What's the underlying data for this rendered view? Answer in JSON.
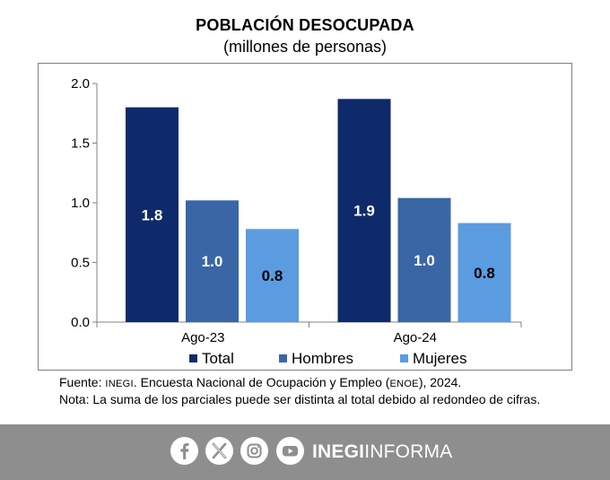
{
  "chart_data": {
    "type": "bar",
    "title": "POBLACIÓN DESOCUPADA",
    "subtitle": "(millones de personas)",
    "categories": [
      "Ago-23",
      "Ago-24"
    ],
    "series": [
      {
        "name": "Total",
        "values": [
          1.8,
          1.87
        ],
        "labels": [
          "1.8",
          "1.9"
        ],
        "color": "#0e2a6b"
      },
      {
        "name": "Hombres",
        "values": [
          1.02,
          1.04
        ],
        "labels": [
          "1.0",
          "1.0"
        ],
        "color": "#3a66a5"
      },
      {
        "name": "Mujeres",
        "values": [
          0.78,
          0.83
        ],
        "labels": [
          "0.8",
          "0.8"
        ],
        "color": "#5b9be0"
      }
    ],
    "yticks": [
      "0.0",
      "0.5",
      "1.0",
      "1.5",
      "2.0"
    ],
    "ylim": [
      0,
      2.0
    ],
    "grid": false,
    "legend_position": "bottom"
  },
  "notes": {
    "source_prefix": "Fuente: ",
    "source_org": "INEGI",
    "source_mid": ". Encuesta Nacional de Ocupación y Empleo (",
    "source_abbr": "ENOE",
    "source_end": "), 2024.",
    "note": "Nota: La suma de los parciales puede ser distinta al total debido al redondeo de cifras."
  },
  "footer": {
    "brand_bold": "INEGI",
    "brand_light": "INFORMA",
    "icons": [
      "facebook-icon",
      "x-icon",
      "instagram-icon",
      "youtube-icon"
    ],
    "background": "#8e8e8e"
  }
}
